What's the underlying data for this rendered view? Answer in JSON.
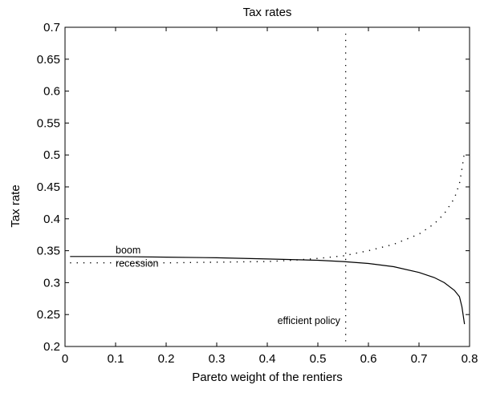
{
  "chart_data": {
    "type": "line",
    "title": "Tax rates",
    "xlabel": "Pareto weight of the rentiers",
    "ylabel": "Tax rate",
    "xlim": [
      0,
      0.8
    ],
    "ylim": [
      0.2,
      0.7
    ],
    "xticks": [
      0,
      0.1,
      0.2,
      0.3,
      0.4,
      0.5,
      0.6,
      0.7,
      0.8
    ],
    "yticks": [
      0.2,
      0.25,
      0.3,
      0.35,
      0.4,
      0.45,
      0.5,
      0.55,
      0.6,
      0.65,
      0.7
    ],
    "xtick_labels": [
      "0",
      "0.1",
      "0.2",
      "0.3",
      "0.4",
      "0.5",
      "0.6",
      "0.7",
      "0.8"
    ],
    "ytick_labels": [
      "0.2",
      "0.25",
      "0.3",
      "0.35",
      "0.4",
      "0.45",
      "0.5",
      "0.55",
      "0.6",
      "0.65",
      "0.7"
    ],
    "grid": false,
    "series": [
      {
        "name": "boom",
        "style": "solid",
        "color": "#000000",
        "x": [
          0.01,
          0.1,
          0.2,
          0.3,
          0.4,
          0.5,
          0.55,
          0.6,
          0.65,
          0.7,
          0.73,
          0.75,
          0.77,
          0.78,
          0.785,
          0.79
        ],
        "y": [
          0.341,
          0.341,
          0.34,
          0.339,
          0.337,
          0.335,
          0.333,
          0.33,
          0.325,
          0.316,
          0.308,
          0.3,
          0.288,
          0.278,
          0.262,
          0.235
        ]
      },
      {
        "name": "recession",
        "style": "dotted",
        "color": "#000000",
        "x": [
          0.01,
          0.1,
          0.2,
          0.3,
          0.4,
          0.45,
          0.5,
          0.55,
          0.6,
          0.65,
          0.7,
          0.73,
          0.75,
          0.77,
          0.78,
          0.785,
          0.79
        ],
        "y": [
          0.331,
          0.331,
          0.331,
          0.332,
          0.333,
          0.335,
          0.338,
          0.342,
          0.35,
          0.36,
          0.376,
          0.392,
          0.408,
          0.432,
          0.455,
          0.478,
          0.505
        ]
      }
    ],
    "vline": {
      "x": 0.555,
      "style": "dotted",
      "color": "#000000"
    },
    "annotations": [
      {
        "text": "boom",
        "x": 0.1,
        "y": 0.346
      },
      {
        "text": "recession",
        "x": 0.1,
        "y": 0.325
      },
      {
        "text": "efficient policy",
        "x": 0.42,
        "y": 0.235
      }
    ]
  }
}
